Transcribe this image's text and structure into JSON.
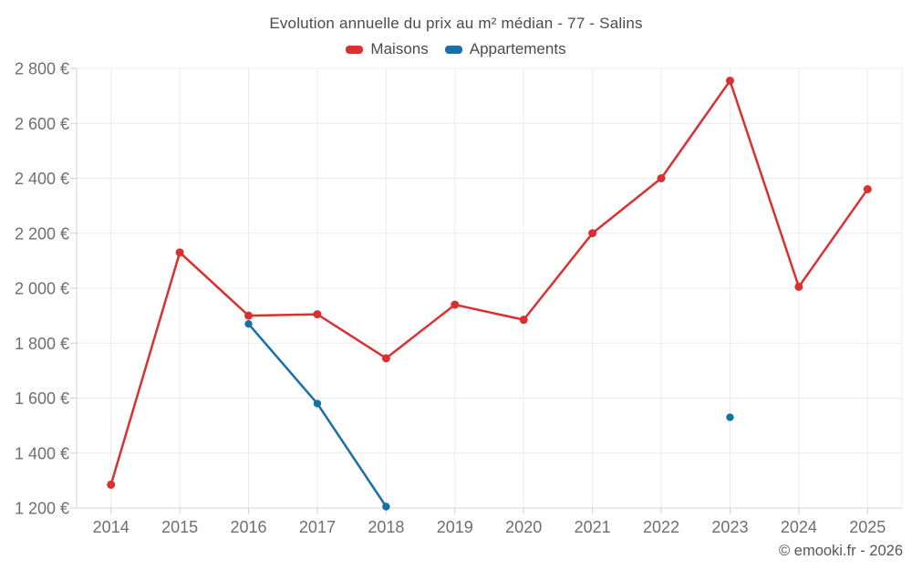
{
  "header": {
    "title": "Evolution annuelle du prix au m² médian - 77 - Salins"
  },
  "footer": {
    "credit": "© emooki.fr - 2026"
  },
  "chart_data": {
    "type": "line",
    "title": "Evolution annuelle du prix au m² médian - 77 - Salins",
    "xlabel": "",
    "ylabel": "",
    "categories": [
      "2014",
      "2015",
      "2016",
      "2017",
      "2018",
      "2019",
      "2020",
      "2021",
      "2022",
      "2023",
      "2024",
      "2025"
    ],
    "series": [
      {
        "name": "Maisons",
        "color": "#d93030",
        "marker_radius": 4.5,
        "values": [
          1285,
          2130,
          1900,
          1905,
          1745,
          1940,
          1885,
          2200,
          2400,
          2755,
          2005,
          2360
        ]
      },
      {
        "name": "Appartements",
        "color": "#1770a8",
        "marker_radius": 4.2,
        "values": [
          null,
          null,
          1870,
          1580,
          1205,
          null,
          null,
          null,
          null,
          1530,
          null,
          null
        ]
      }
    ],
    "ylim": [
      1200,
      2800
    ],
    "ytick_step": 200,
    "ytick_labels": [
      "1 200 €",
      "1 400 €",
      "1 600 €",
      "1 800 €",
      "2 000 €",
      "2 200 €",
      "2 400 €",
      "2 600 €",
      "2 800 €"
    ],
    "currency": "€",
    "grid": true,
    "legend_position": "top"
  }
}
